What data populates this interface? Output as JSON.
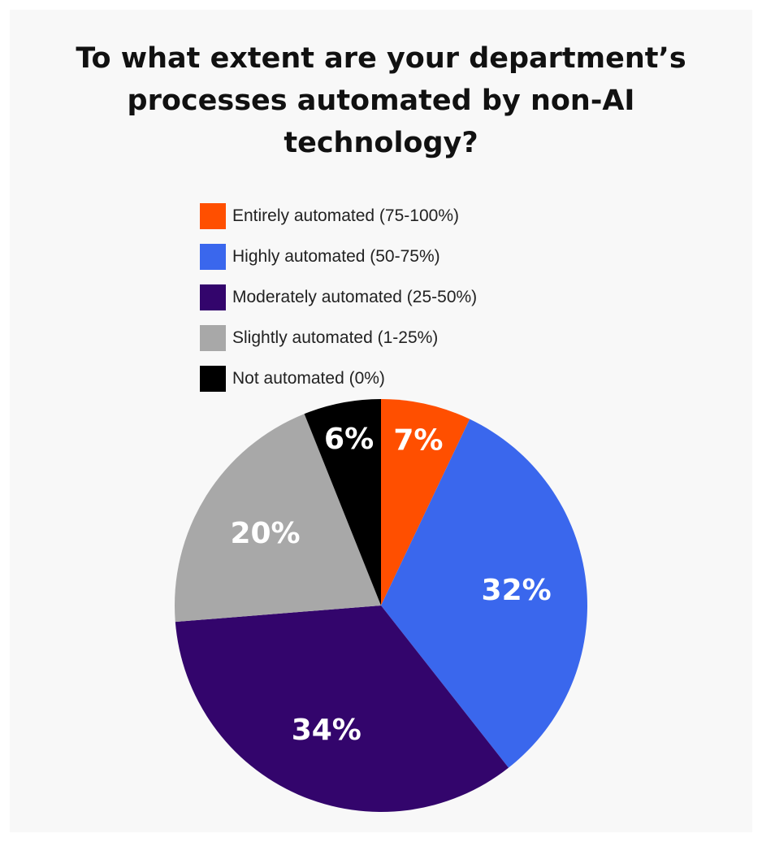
{
  "chart_data": {
    "type": "pie",
    "title_lines": [
      "To what extent are your department’s",
      "processes automated by non-AI",
      "technology?"
    ],
    "categories": [
      "Entirely automated (75-100%)",
      "Highly automated (50-75%)",
      "Moderately automated (25-50%)",
      "Slightly automated (1-25%)",
      "Not automated (0%)"
    ],
    "values": [
      7,
      32,
      34,
      20,
      6
    ],
    "labels": [
      "7%",
      "32%",
      "34%",
      "20%",
      "6%"
    ],
    "colors": [
      "#ff4f00",
      "#3a67ed",
      "#33056c",
      "#a8a8a8",
      "#000000"
    ],
    "start_angle": "12 o'clock",
    "direction": "clockwise",
    "legend_position": "top"
  }
}
